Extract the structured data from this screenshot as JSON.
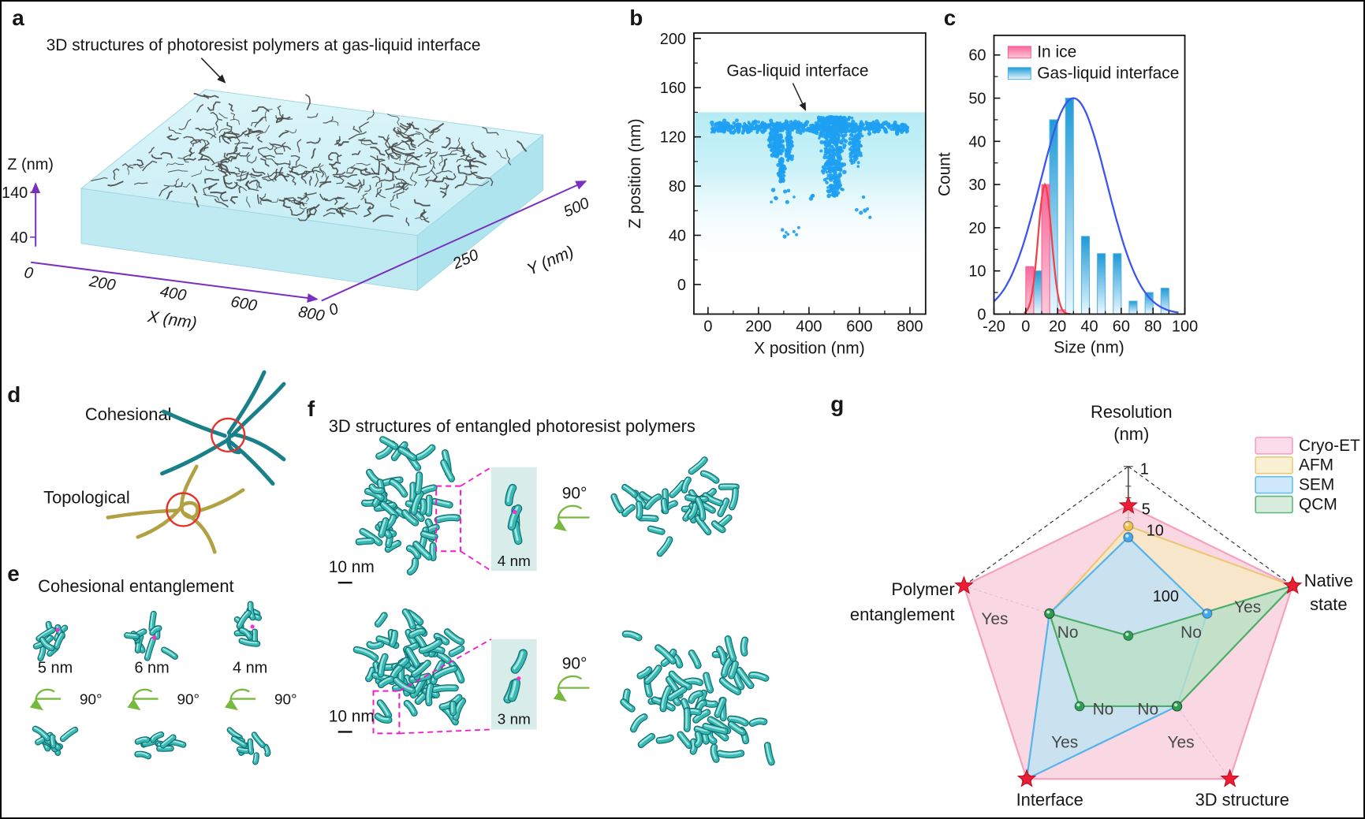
{
  "palette": {
    "slab_top": "#d2f1f6",
    "slab_front": "#c0eaf2",
    "slab_side": "#aee4ee",
    "axis_purple": "#7b2fbe",
    "squiggle_gray": "#454545",
    "scatter_blue": "#1e9ff2",
    "magenta_dashed": "#f318c9",
    "rotation_green": "#76b93e",
    "strand_teal": "#19808a",
    "strand_olive": "#b2a143",
    "red_circle": "#e63128",
    "worm_dark": "#0f6e72",
    "worm_mid": "#38b9b3",
    "worm_light": "#b9efe8",
    "inset_bg": "#d8ece9"
  },
  "panel_a": {
    "label": "a",
    "title": "3D structures of photoresist polymers at gas-liquid interface",
    "z_label": "Z (nm)",
    "z_ticks": [
      "140",
      "40"
    ],
    "x_label": "X (nm)",
    "x_ticks": [
      "0",
      "200",
      "400",
      "600",
      "800"
    ],
    "y_label": "Y (nm)",
    "y_ticks": [
      "0",
      "250",
      "500"
    ]
  },
  "panel_b": {
    "label": "b",
    "annotation": "Gas-liquid interface",
    "xlabel": "X position (nm)",
    "ylabel": "Z position (nm)"
  },
  "panel_c": {
    "label": "c",
    "xlabel": "Size (nm)",
    "ylabel": "Count"
  },
  "panel_d": {
    "label": "d",
    "item_top": "Cohesional",
    "item_bottom": "Topological"
  },
  "panel_e": {
    "label": "e",
    "title": "Cohesional entanglement",
    "sizes": [
      "5 nm",
      "6 nm",
      "4 nm"
    ],
    "rotation": "90°"
  },
  "panel_f": {
    "label": "f",
    "title": "3D structures of entangled photoresist polymers",
    "scale_bar": "10 nm",
    "rotation": "90°",
    "inset_top": "4 nm",
    "inset_bottom": "3 nm"
  },
  "panel_g": {
    "label": "g",
    "res_line1": "Resolution",
    "res_line2": "(nm)",
    "res_ticks": [
      "1",
      "5",
      "10",
      "100"
    ],
    "native_line1": "Native",
    "native_line2": "state",
    "structure3d": "3D structure",
    "interface": "Interface",
    "polymer_line1": "Polymer",
    "polymer_line2": "entanglement",
    "yes": "Yes",
    "no": "No"
  },
  "chart_data": {
    "b_scatter": {
      "type": "scatter",
      "xlabel": "X position (nm)",
      "ylabel": "Z position (nm)",
      "xlim": [
        0,
        800
      ],
      "ylim": [
        0,
        200
      ],
      "xticks": [
        0,
        200,
        400,
        600,
        800
      ],
      "yticks": [
        0,
        40,
        80,
        120,
        160,
        200
      ],
      "annotation": "Gas-liquid interface",
      "interface_band_z": [
        28,
        140
      ],
      "point_color": "#1e9ff2",
      "clusters": [
        {
          "x": [
            15,
            790
          ],
          "z": [
            122,
            134
          ],
          "n": 540,
          "shape": "band"
        },
        {
          "x": [
            240,
            302
          ],
          "z": [
            100,
            133
          ],
          "n": 110,
          "shape": "blob"
        },
        {
          "x": [
            274,
            306
          ],
          "z": [
            82,
            104
          ],
          "n": 55,
          "shape": "blob"
        },
        {
          "x": [
            306,
            336
          ],
          "z": [
            98,
            133
          ],
          "n": 70,
          "shape": "blob"
        },
        {
          "x": [
            428,
            570
          ],
          "z": [
            72,
            136
          ],
          "n": 500,
          "shape": "taper"
        },
        {
          "x": [
            558,
            612
          ],
          "z": [
            95,
            136
          ],
          "n": 95,
          "shape": "blob"
        },
        {
          "x": [
            248,
            420
          ],
          "z": [
            66,
            77
          ],
          "n": 12,
          "shape": "sparse"
        },
        {
          "x": [
            292,
            368
          ],
          "z": [
            38,
            47
          ],
          "n": 7,
          "shape": "sparse"
        },
        {
          "x": [
            588,
            662
          ],
          "z": [
            52,
            73
          ],
          "n": 6,
          "shape": "sparse"
        }
      ]
    },
    "c_histogram": {
      "type": "bar",
      "xlabel": "Size (nm)",
      "ylabel": "Count",
      "xlim": [
        -20,
        100
      ],
      "ylim": [
        0,
        65
      ],
      "xticks": [
        -20,
        0,
        20,
        40,
        60,
        80,
        100
      ],
      "yticks": [
        0,
        10,
        20,
        30,
        40,
        50,
        60
      ],
      "bin_width": 5,
      "series": [
        {
          "name": "In ice",
          "bar_color_top": "#f8679b",
          "bar_color_bottom": "#fbc9d9",
          "bar_stroke": "#f45f96",
          "bars": [
            {
              "x0": 0,
              "count": 11
            },
            {
              "x0": 10,
              "count": 30
            },
            {
              "x0": 20,
              "count": 1
            }
          ],
          "fit_curve": {
            "mean": 12,
            "sigma": 4.2,
            "peak": 30,
            "color": "#f2414b"
          }
        },
        {
          "name": "Gas-liquid interface",
          "bar_color_top": "#1f9ad6",
          "bar_color_bottom": "#eaf7fd",
          "bar_stroke": "#49b2e8",
          "bars": [
            {
              "x0": 5,
              "count": 10
            },
            {
              "x0": 15,
              "count": 45
            },
            {
              "x0": 25,
              "count": 50
            },
            {
              "x0": 35,
              "count": 18
            },
            {
              "x0": 45,
              "count": 14
            },
            {
              "x0": 55,
              "count": 14
            },
            {
              "x0": 65,
              "count": 3
            },
            {
              "x0": 75,
              "count": 5
            },
            {
              "x0": 85,
              "count": 6
            }
          ],
          "fit_curve": {
            "mean": 30,
            "sigma": 21,
            "peak": 50,
            "color": "#3d55f0"
          }
        }
      ]
    },
    "g_radar": {
      "type": "radar",
      "axes": [
        "Resolution (nm)",
        "Native state",
        "3D structure",
        "Interface",
        "Polymer entanglement"
      ],
      "resolution_ticks": [
        1,
        5,
        10,
        100
      ],
      "no_radius": 0.48,
      "series": [
        {
          "name": "Cryo-ET",
          "fill": "#f9cfdd",
          "stroke": "#f5a0c0",
          "marker": "star",
          "marker_color": "#ee1c34",
          "r": [
            0.773,
            1,
            1,
            1,
            1
          ],
          "values": {
            "resolution_nm": "5",
            "native_state": "Yes",
            "structure_3d": "Yes",
            "interface": "Yes",
            "polymer_entanglement": "Yes"
          }
        },
        {
          "name": "AFM",
          "fill": "#f7e9c4",
          "stroke": "#ecc979",
          "marker": "sphere",
          "marker_color": "#f2c14b",
          "r": [
            0.655,
            1,
            0.48,
            1,
            0.48
          ],
          "values": {
            "resolution_nm": "8",
            "native_state": "Yes",
            "structure_3d": "No",
            "interface": "Yes",
            "polymer_entanglement": "No"
          }
        },
        {
          "name": "SEM",
          "fill": "#bfe0f7",
          "stroke": "#54b4ef",
          "marker": "sphere",
          "marker_color": "#42aaf2",
          "r": [
            0.59,
            0.48,
            0.48,
            1,
            0.48
          ],
          "values": {
            "resolution_nm": "10",
            "native_state": "No",
            "structure_3d": "No",
            "interface": "Yes",
            "polymer_entanglement": "No"
          }
        },
        {
          "name": "QCM",
          "fill": "#b9dfc8",
          "stroke": "#4aae6a",
          "marker": "sphere",
          "marker_color": "#2e9e50",
          "r": [
            0.02,
            1,
            0.48,
            0.48,
            0.48
          ],
          "values": {
            "resolution_nm": ">100",
            "native_state": "Yes",
            "structure_3d": "No",
            "interface": "No",
            "polymer_entanglement": "No"
          }
        }
      ]
    }
  }
}
